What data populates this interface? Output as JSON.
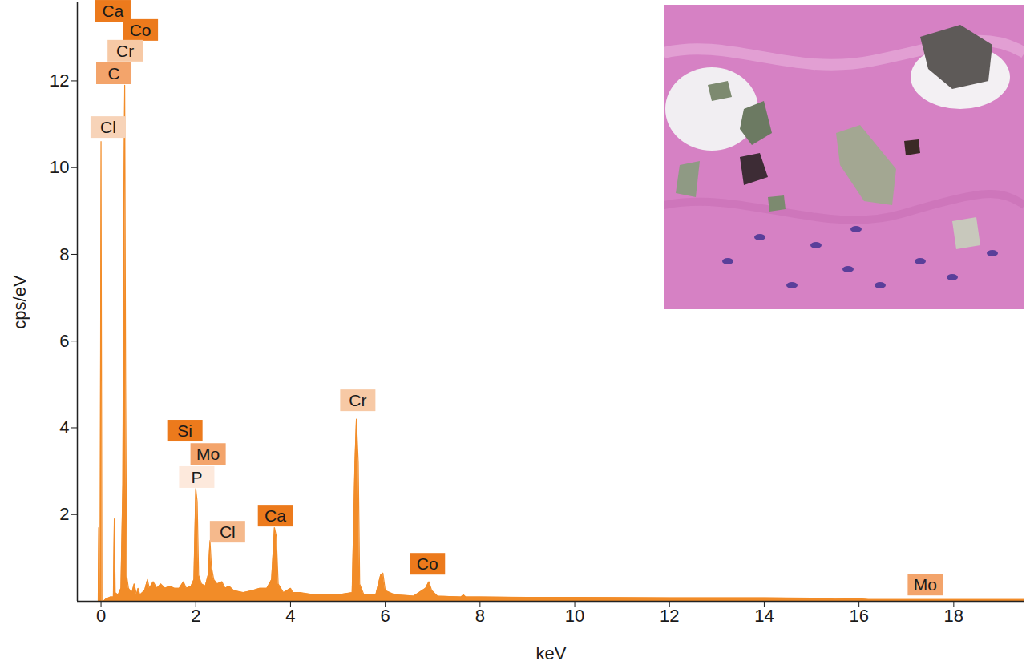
{
  "chart_data": {
    "type": "area",
    "xlabel": "keV",
    "ylabel": "cps/eV",
    "color": "#f28c28",
    "xlim": [
      -0.5,
      19.5
    ],
    "ylim": [
      0,
      13.8
    ],
    "xticks": [
      0,
      2,
      4,
      6,
      8,
      10,
      12,
      14,
      16,
      18
    ],
    "yticks": [
      2,
      4,
      6,
      8,
      10,
      12
    ],
    "x": [
      -0.1,
      -0.06,
      -0.05,
      -0.04,
      -0.02,
      0.0,
      0.02,
      0.05,
      0.1,
      0.2,
      0.26,
      0.28,
      0.3,
      0.36,
      0.42,
      0.46,
      0.48,
      0.5,
      0.52,
      0.54,
      0.58,
      0.65,
      0.7,
      0.75,
      0.78,
      0.82,
      0.92,
      0.98,
      1.02,
      1.1,
      1.18,
      1.26,
      1.35,
      1.45,
      1.55,
      1.65,
      1.74,
      1.8,
      1.9,
      1.96,
      2.0,
      2.03,
      2.06,
      2.12,
      2.2,
      2.26,
      2.3,
      2.33,
      2.38,
      2.45,
      2.55,
      2.62,
      2.7,
      2.8,
      3.0,
      3.2,
      3.35,
      3.5,
      3.6,
      3.66,
      3.7,
      3.74,
      3.85,
      4.0,
      4.05,
      4.2,
      4.5,
      5.0,
      5.3,
      5.36,
      5.39,
      5.43,
      5.46,
      5.55,
      5.8,
      5.9,
      5.95,
      6.0,
      6.2,
      6.6,
      6.85,
      6.92,
      6.98,
      7.1,
      7.6,
      7.65,
      7.7,
      8.0,
      9.0,
      10.0,
      12.0,
      14.0,
      15.0,
      15.5,
      16.0,
      16.2,
      18.0,
      19.5
    ],
    "values": [
      0,
      0,
      1.7,
      0,
      0,
      10.6,
      0,
      0,
      0.05,
      0.1,
      0.1,
      1.9,
      0.2,
      0.15,
      0.3,
      2.7,
      8.9,
      11.9,
      5,
      0.6,
      0.3,
      0.2,
      0.4,
      0.15,
      0.3,
      0.15,
      0.25,
      0.5,
      0.3,
      0.45,
      0.3,
      0.4,
      0.3,
      0.35,
      0.3,
      0.3,
      0.45,
      0.3,
      0.35,
      0.5,
      2.6,
      2.3,
      0.6,
      0.4,
      0.35,
      0.6,
      1.4,
      0.8,
      0.5,
      0.4,
      0.45,
      0.3,
      0.35,
      0.25,
      0.2,
      0.25,
      0.3,
      0.3,
      0.5,
      1.7,
      1.5,
      0.4,
      0.2,
      0.3,
      0.2,
      0.2,
      0.15,
      0.15,
      0.2,
      3.2,
      4.2,
      3.2,
      0.4,
      0.15,
      0.15,
      0.6,
      0.65,
      0.25,
      0.15,
      0.12,
      0.3,
      0.45,
      0.25,
      0.12,
      0.1,
      0.15,
      0.1,
      0.1,
      0.09,
      0.09,
      0.08,
      0.08,
      0.07,
      0.05,
      0.06,
      0.04,
      0.04,
      0.04
    ],
    "annotations": [
      {
        "text": "Ca",
        "x": 0.25,
        "y": 13.6,
        "color": "#ec7a1c"
      },
      {
        "text": "Co",
        "x": 0.83,
        "y": 13.16,
        "color": "#ec7a1c"
      },
      {
        "text": "Cr",
        "x": 0.51,
        "y": 12.68,
        "color": "#f7c9a5"
      },
      {
        "text": "C",
        "x": 0.27,
        "y": 12.16,
        "color": "#f3a46b"
      },
      {
        "text": "Cl",
        "x": 0.15,
        "y": 10.92,
        "color": "#f7d3b8"
      },
      {
        "text": "Si",
        "x": 1.77,
        "y": 3.92,
        "color": "#ec7a1c"
      },
      {
        "text": "Mo",
        "x": 2.26,
        "y": 3.38,
        "color": "#f3a46b"
      },
      {
        "text": "P",
        "x": 2.02,
        "y": 2.85,
        "color": "#fde9dc"
      },
      {
        "text": "Cl",
        "x": 2.67,
        "y": 1.59,
        "color": "#f5b98c"
      },
      {
        "text": "Ca",
        "x": 3.68,
        "y": 1.96,
        "color": "#ec7a1c"
      },
      {
        "text": "Cr",
        "x": 5.42,
        "y": 4.62,
        "color": "#f7c9a5"
      },
      {
        "text": "Co",
        "x": 6.89,
        "y": 0.85,
        "color": "#ec7a1c"
      },
      {
        "text": "Mo",
        "x": 17.4,
        "y": 0.37,
        "color": "#f3a46b"
      }
    ]
  }
}
